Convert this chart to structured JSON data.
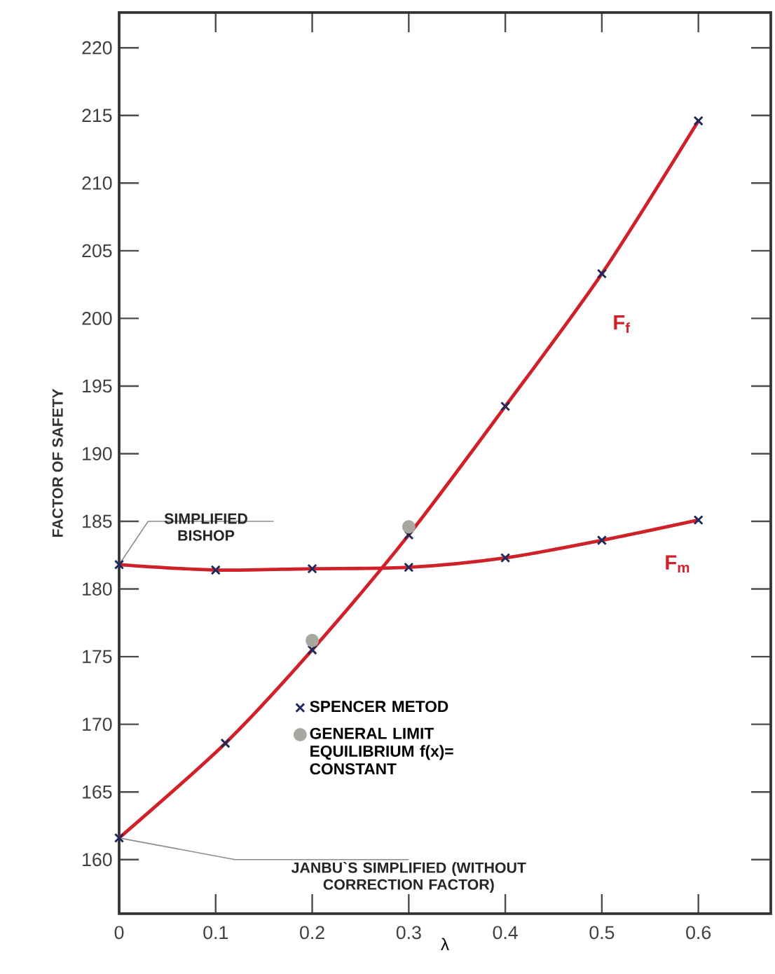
{
  "chart_data": {
    "type": "line",
    "xlabel": "λ",
    "ylabel": "FACTOR OF SAFETY",
    "xlim": [
      0,
      0.675
    ],
    "ylim": [
      156,
      222.6
    ],
    "xticks": [
      0,
      0.1,
      0.2,
      0.3,
      0.4,
      0.5,
      0.6
    ],
    "yticks": [
      160,
      165,
      170,
      175,
      180,
      185,
      190,
      195,
      200,
      205,
      210,
      215,
      220
    ],
    "grid": false,
    "legend": "center",
    "line_style": "solid",
    "series": [
      {
        "name": "F$_{f}$",
        "marker": "none",
        "color": "#d0202a",
        "x": [
          0,
          0.11,
          0.2,
          0.3,
          0.4,
          0.5,
          0.6
        ],
        "values": [
          161.6,
          168.6,
          175.5,
          184.0,
          193.5,
          203.3,
          214.6
        ]
      },
      {
        "name": "F$_{m}$",
        "marker": "none",
        "color": "#d0202a",
        "x": [
          0,
          0.1,
          0.2,
          0.3,
          0.4,
          0.5,
          0.6
        ],
        "values": [
          181.8,
          181.4,
          181.5,
          181.6,
          182.3,
          183.6,
          185.1
        ]
      },
      {
        "name": "SPENCER METOD",
        "type": "scatter",
        "marker": "cross",
        "color": "#1f2a5a",
        "x": [
          0,
          0.11,
          0.2,
          0.3,
          0.4,
          0.5,
          0.6,
          0,
          0.1,
          0.2,
          0.3,
          0.4,
          0.5,
          0.6
        ],
        "values": [
          161.6,
          168.6,
          175.5,
          184.0,
          193.5,
          203.3,
          214.6,
          181.8,
          181.4,
          181.5,
          181.6,
          182.3,
          183.6,
          185.1
        ]
      },
      {
        "name": "GENERAL LIMIT EQUILIBRIUM f(x)= CONSTANT",
        "type": "scatter",
        "marker": "circle",
        "color": "#a8a8a0",
        "x": [
          0.2,
          0.3
        ],
        "values": [
          176.2,
          184.6
        ]
      }
    ],
    "annotations": [
      {
        "text": "SIMPLIFIED BISHOP",
        "x": 0,
        "y": 181.8
      },
      {
        "text": "JANBU`S SIMPLIFIED (WITHOUT CORRECTION FACTOR)",
        "x": 0,
        "y": 161.6
      }
    ]
  }
}
